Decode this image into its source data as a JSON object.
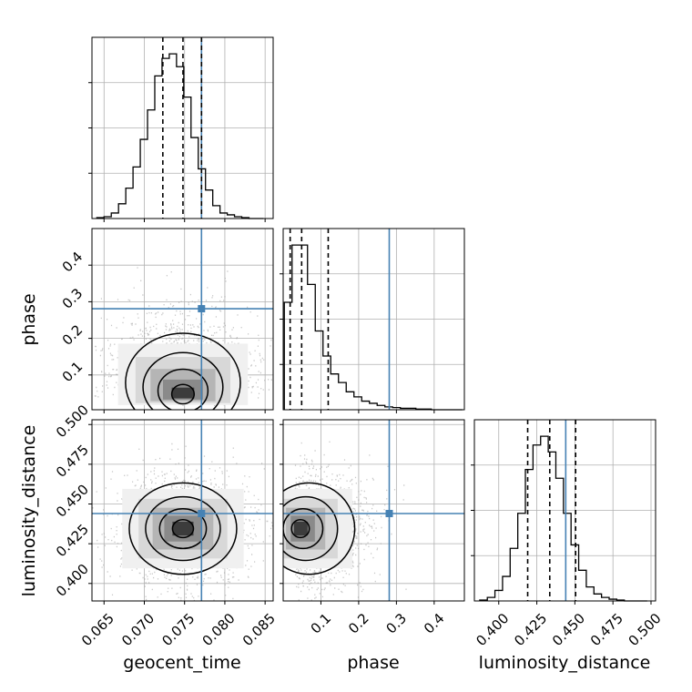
{
  "chart_data": {
    "type": "corner",
    "parameters": [
      "geocent_time",
      "phase",
      "luminosity_distance"
    ],
    "injection_color": "#4682b4",
    "grid": true,
    "injection": {
      "geocent_time": 0.0771,
      "phase": 0.281,
      "luminosity_distance": 0.444
    },
    "panels": {
      "geocent_time_hist": {
        "xlim": [
          0.0635,
          0.086
        ],
        "xticks": [
          "0.065",
          "0.070",
          "0.075",
          "0.080",
          "0.085"
        ],
        "bin_edges": [
          0.0641,
          0.065,
          0.0659,
          0.0668,
          0.0677,
          0.0686,
          0.0695,
          0.0704,
          0.0713,
          0.0722,
          0.0731,
          0.074,
          0.0749,
          0.0758,
          0.0767,
          0.0776,
          0.0785,
          0.0794,
          0.0803,
          0.0812,
          0.0821,
          0.083,
          0.0839,
          0.0848
        ],
        "counts": [
          1,
          2,
          6,
          16,
          33,
          56,
          86,
          118,
          155,
          174,
          179,
          165,
          132,
          88,
          54,
          31,
          14,
          6,
          4,
          2,
          1,
          0,
          0
        ],
        "quantiles": [
          0.0723,
          0.0748,
          0.0771
        ]
      },
      "phase_hist": {
        "xlim": [
          0.0,
          0.48
        ],
        "xticks": [
          "0.1",
          "0.2",
          "0.3",
          "0.4"
        ],
        "bin_edges": [
          0.003,
          0.0235,
          0.044,
          0.0645,
          0.085,
          0.1055,
          0.126,
          0.1465,
          0.167,
          0.1875,
          0.208,
          0.2285,
          0.249,
          0.2695,
          0.29,
          0.3105,
          0.331,
          0.3515,
          0.372,
          0.3925,
          0.413,
          0.4335,
          0.454,
          0.4745
        ],
        "counts": [
          150,
          230,
          230,
          175,
          110,
          75,
          50,
          38,
          25,
          18,
          12,
          9,
          6,
          4,
          3,
          2,
          2,
          1,
          1,
          0,
          0,
          0,
          0
        ],
        "quantiles": [
          0.0185,
          0.049,
          0.1193
        ]
      },
      "luminosity_distance_hist": {
        "xlim": [
          0.384,
          0.503
        ],
        "xticks": [
          "0.400",
          "0.425",
          "0.450",
          "0.475",
          "0.500"
        ],
        "bin_edges": [
          0.3875,
          0.3925,
          0.3975,
          0.4025,
          0.4075,
          0.4125,
          0.4175,
          0.4225,
          0.4275,
          0.4325,
          0.4375,
          0.4425,
          0.4475,
          0.4525,
          0.4575,
          0.4625,
          0.4675,
          0.4725,
          0.4775,
          0.4825,
          0.4875,
          0.4925,
          0.4975
        ],
        "counts": [
          1,
          4,
          12,
          28,
          60,
          100,
          150,
          178,
          188,
          170,
          140,
          100,
          64,
          35,
          16,
          8,
          4,
          2,
          1,
          0,
          0,
          0
        ],
        "quantiles": [
          0.419,
          0.4335,
          0.4505
        ]
      },
      "phase_vs_geocent_time": {
        "x_range": [
          0.0635,
          0.086
        ],
        "y_range": [
          0.005,
          0.5
        ],
        "yticks": [
          "0.1",
          "0.2",
          "0.3",
          "0.4"
        ],
        "peak": {
          "x": 0.0748,
          "y": 0.04
        },
        "spread": {
          "x": 0.0031,
          "y": 0.056
        }
      },
      "luminosity_distance_vs_geocent_time": {
        "x_range": [
          0.0635,
          0.086
        ],
        "y_range": [
          0.389,
          0.503
        ],
        "yticks": [
          "0.400",
          "0.425",
          "0.450",
          "0.475",
          "0.500"
        ],
        "peak": {
          "x": 0.0748,
          "y": 0.4345
        },
        "spread": {
          "x": 0.0029,
          "y": 0.0125
        }
      },
      "luminosity_distance_vs_phase": {
        "x_range": [
          0.0,
          0.48
        ],
        "y_range": [
          0.389,
          0.503
        ],
        "peak": {
          "x": 0.04,
          "y": 0.4345
        },
        "spread": {
          "x": 0.05,
          "y": 0.0125
        }
      }
    },
    "xlabels": [
      "geocent_time",
      "phase",
      "luminosity_distance"
    ],
    "ylabels": [
      "phase",
      "luminosity_distance"
    ]
  }
}
